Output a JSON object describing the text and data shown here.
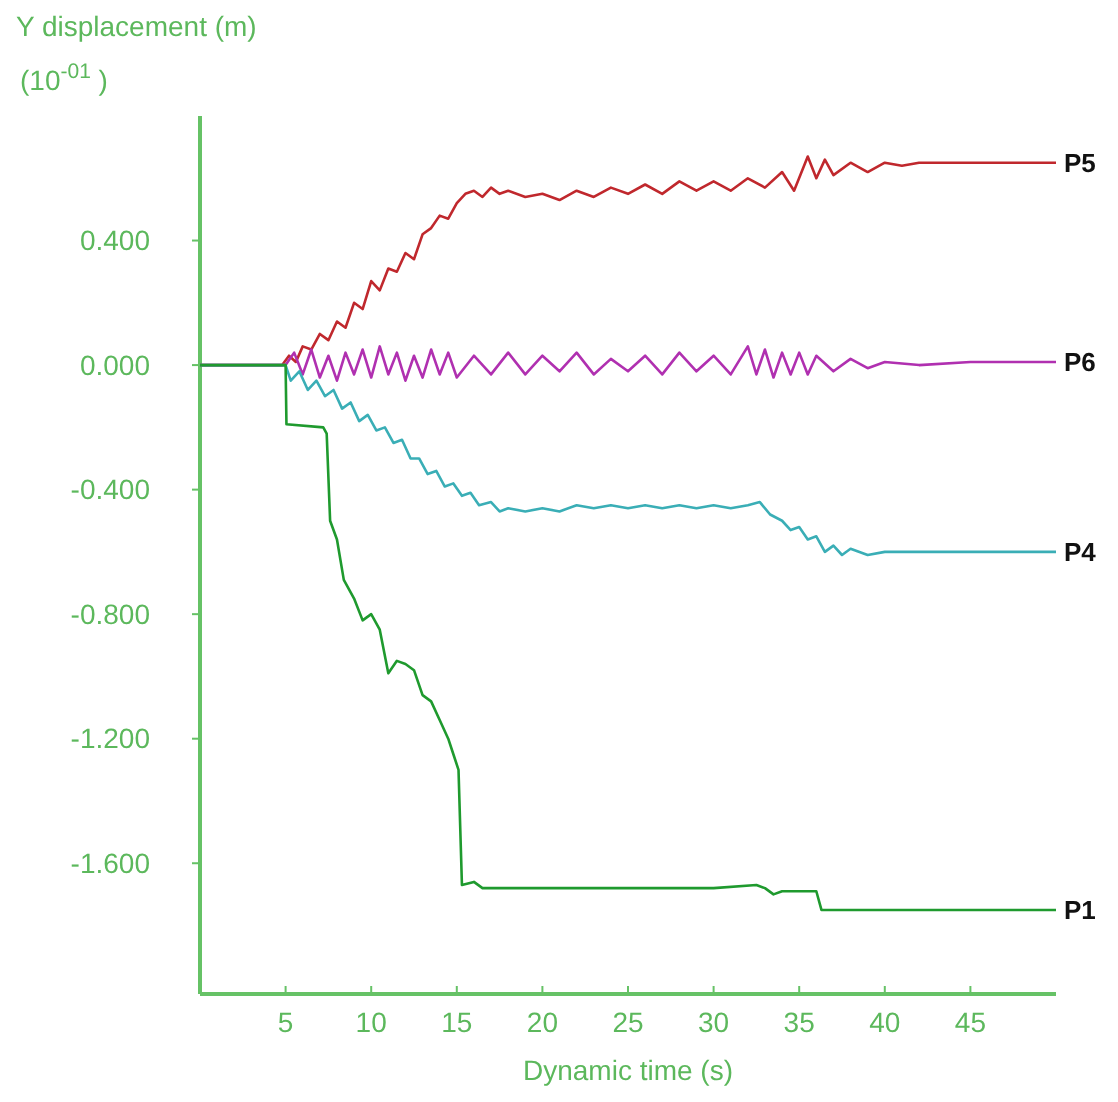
{
  "chart_data": {
    "type": "line",
    "ylabel": "Y displacement (m)",
    "xlabel": "Dynamic time (s)",
    "annotations": [
      "(10$^{-01}$ )"
    ],
    "xlim": [
      0,
      50
    ],
    "xticks": [
      5,
      10,
      15,
      20,
      25,
      30,
      35,
      40,
      45
    ],
    "ylim": [
      -2.02,
      0.8
    ],
    "yticks": [
      {
        "value": 0.4,
        "label": "0.400"
      },
      {
        "value": 0,
        "label": "0.000"
      },
      {
        "value": -0.4,
        "label": "-0.400"
      },
      {
        "value": -0.8,
        "label": "-0.800"
      },
      {
        "value": -1.2,
        "label": "-1.200"
      },
      {
        "value": -1.6,
        "label": "-1.600"
      }
    ],
    "grid": false,
    "marker": "none",
    "line_style": "solid",
    "series": [
      {
        "name": "P5",
        "color": "#c0282d",
        "x": [
          0,
          4.8,
          5.2,
          5.6,
          6,
          6.5,
          7,
          7.5,
          8,
          8.5,
          9,
          9.5,
          10,
          10.5,
          11,
          11.5,
          12,
          12.5,
          13,
          13.5,
          14,
          14.5,
          15,
          15.5,
          16,
          16.5,
          17,
          17.5,
          18,
          19,
          20,
          21,
          22,
          23,
          24,
          25,
          26,
          27,
          28,
          29,
          30,
          31,
          32,
          33,
          34,
          34.7,
          35.5,
          36,
          36.5,
          37,
          38,
          39,
          40,
          41,
          42,
          43,
          50
        ],
        "values": [
          0,
          0,
          0.03,
          0.01,
          0.06,
          0.05,
          0.1,
          0.08,
          0.14,
          0.12,
          0.2,
          0.18,
          0.27,
          0.24,
          0.31,
          0.3,
          0.36,
          0.34,
          0.42,
          0.44,
          0.48,
          0.47,
          0.52,
          0.55,
          0.56,
          0.54,
          0.57,
          0.55,
          0.56,
          0.54,
          0.55,
          0.53,
          0.56,
          0.54,
          0.57,
          0.55,
          0.58,
          0.55,
          0.59,
          0.56,
          0.59,
          0.56,
          0.6,
          0.57,
          0.62,
          0.56,
          0.67,
          0.6,
          0.66,
          0.61,
          0.65,
          0.62,
          0.65,
          0.64,
          0.65,
          0.65,
          0.65
        ]
      },
      {
        "name": "P6",
        "color": "#b030b0",
        "x": [
          0,
          5,
          5.5,
          6,
          6.5,
          7,
          7.5,
          8,
          8.5,
          9,
          9.5,
          10,
          10.5,
          11,
          11.5,
          12,
          12.5,
          13,
          13.5,
          14,
          14.5,
          15,
          16,
          17,
          18,
          19,
          20,
          21,
          22,
          23,
          24,
          25,
          26,
          27,
          28,
          29,
          30,
          31,
          32,
          32.5,
          33,
          33.5,
          34,
          34.5,
          35,
          35.5,
          36,
          37,
          38,
          39,
          40,
          42,
          45,
          50
        ],
        "values": [
          0,
          0,
          0.04,
          -0.03,
          0.05,
          -0.04,
          0.03,
          -0.05,
          0.04,
          -0.03,
          0.05,
          -0.04,
          0.06,
          -0.03,
          0.04,
          -0.05,
          0.03,
          -0.04,
          0.05,
          -0.03,
          0.04,
          -0.04,
          0.03,
          -0.03,
          0.04,
          -0.03,
          0.03,
          -0.02,
          0.04,
          -0.03,
          0.02,
          -0.02,
          0.03,
          -0.03,
          0.04,
          -0.02,
          0.03,
          -0.03,
          0.06,
          -0.03,
          0.05,
          -0.04,
          0.04,
          -0.03,
          0.04,
          -0.03,
          0.03,
          -0.02,
          0.02,
          -0.01,
          0.01,
          0,
          0.01,
          0.01
        ]
      },
      {
        "name": "P4",
        "color": "#3aaeb6",
        "x": [
          0,
          5,
          5.3,
          5.8,
          6.3,
          6.8,
          7.3,
          7.8,
          8.3,
          8.8,
          9.3,
          9.8,
          10.3,
          10.8,
          11.3,
          11.8,
          12.3,
          12.8,
          13.3,
          13.8,
          14.3,
          14.8,
          15.3,
          15.8,
          16.3,
          17,
          17.5,
          18,
          19,
          20,
          21,
          22,
          23,
          24,
          25,
          26,
          27,
          28,
          29,
          30,
          31,
          32,
          32.7,
          33.3,
          34,
          34.5,
          35,
          35.5,
          36,
          36.5,
          37,
          37.5,
          38,
          39,
          40,
          42,
          50
        ],
        "values": [
          0,
          0,
          -0.05,
          -0.02,
          -0.08,
          -0.05,
          -0.1,
          -0.08,
          -0.14,
          -0.12,
          -0.18,
          -0.16,
          -0.21,
          -0.2,
          -0.25,
          -0.24,
          -0.3,
          -0.3,
          -0.35,
          -0.34,
          -0.39,
          -0.38,
          -0.42,
          -0.41,
          -0.45,
          -0.44,
          -0.47,
          -0.46,
          -0.47,
          -0.46,
          -0.47,
          -0.45,
          -0.46,
          -0.45,
          -0.46,
          -0.45,
          -0.46,
          -0.45,
          -0.46,
          -0.45,
          -0.46,
          -0.45,
          -0.44,
          -0.48,
          -0.5,
          -0.53,
          -0.52,
          -0.56,
          -0.55,
          -0.6,
          -0.58,
          -0.61,
          -0.59,
          -0.61,
          -0.6,
          -0.6,
          -0.6
        ]
      },
      {
        "name": "P1",
        "color": "#1f9a2e",
        "x": [
          0,
          5,
          5.05,
          7.2,
          7.4,
          7.6,
          8,
          8.4,
          9,
          9.5,
          10,
          10.5,
          11,
          11.5,
          12,
          12.5,
          13,
          13.5,
          14,
          14.5,
          14.8,
          15.1,
          15.3,
          16,
          16.5,
          20,
          25,
          30,
          32.5,
          33,
          33.5,
          34,
          36,
          36.3,
          40,
          50
        ],
        "values": [
          0,
          0,
          -0.19,
          -0.2,
          -0.22,
          -0.5,
          -0.56,
          -0.69,
          -0.75,
          -0.82,
          -0.8,
          -0.85,
          -0.99,
          -0.95,
          -0.96,
          -0.98,
          -1.06,
          -1.08,
          -1.14,
          -1.2,
          -1.25,
          -1.3,
          -1.67,
          -1.66,
          -1.68,
          -1.68,
          -1.68,
          -1.68,
          -1.67,
          -1.68,
          -1.7,
          -1.69,
          -1.69,
          -1.75,
          -1.75,
          -1.75
        ]
      }
    ]
  }
}
